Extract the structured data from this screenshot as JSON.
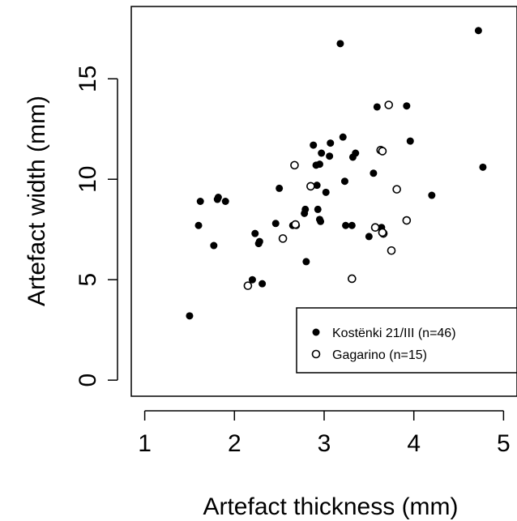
{
  "chart_data": {
    "type": "scatter",
    "title": "",
    "xlabel": "Artefact thickness (mm)",
    "ylabel": "Artefact width (mm)",
    "xlim": [
      0.85,
      5.15
    ],
    "ylim": [
      -0.8,
      18.6
    ],
    "xticks": [
      1,
      2,
      3,
      4,
      5
    ],
    "yticks": [
      0,
      5,
      10,
      15
    ],
    "grid": false,
    "legend_position": "bottom-right",
    "series": [
      {
        "name": "Kostënki 21/III (n=46)",
        "marker": "filled-circle",
        "color": "#000000",
        "points": [
          [
            1.5,
            3.2
          ],
          [
            1.6,
            7.7
          ],
          [
            1.62,
            8.9
          ],
          [
            1.77,
            6.7
          ],
          [
            1.81,
            9.0
          ],
          [
            1.82,
            9.1
          ],
          [
            1.9,
            8.9
          ],
          [
            2.2,
            5.0
          ],
          [
            2.23,
            7.3
          ],
          [
            2.27,
            6.8
          ],
          [
            2.28,
            6.9
          ],
          [
            2.31,
            4.8
          ],
          [
            2.46,
            7.8
          ],
          [
            2.5,
            9.55
          ],
          [
            2.65,
            7.7
          ],
          [
            2.69,
            7.7
          ],
          [
            2.78,
            8.3
          ],
          [
            2.79,
            8.5
          ],
          [
            2.8,
            5.9
          ],
          [
            2.88,
            11.7
          ],
          [
            2.91,
            10.7
          ],
          [
            2.92,
            9.7
          ],
          [
            2.93,
            8.5
          ],
          [
            2.95,
            10.75
          ],
          [
            2.95,
            8.0
          ],
          [
            2.96,
            7.9
          ],
          [
            2.97,
            11.3
          ],
          [
            3.02,
            9.35
          ],
          [
            3.06,
            11.15
          ],
          [
            3.07,
            11.8
          ],
          [
            3.18,
            16.75
          ],
          [
            3.21,
            12.1
          ],
          [
            3.23,
            9.9
          ],
          [
            3.24,
            7.7
          ],
          [
            3.31,
            7.7
          ],
          [
            3.32,
            11.1
          ],
          [
            3.35,
            11.3
          ],
          [
            3.5,
            7.15
          ],
          [
            3.55,
            10.3
          ],
          [
            3.59,
            13.6
          ],
          [
            3.64,
            7.6
          ],
          [
            3.92,
            13.65
          ],
          [
            3.96,
            11.9
          ],
          [
            4.2,
            9.2
          ],
          [
            4.72,
            17.4
          ],
          [
            4.77,
            10.6
          ]
        ]
      },
      {
        "name": "Gagarino (n=15)",
        "marker": "open-circle",
        "color": "#000000",
        "points": [
          [
            2.15,
            4.7
          ],
          [
            2.54,
            7.05
          ],
          [
            2.67,
            10.7
          ],
          [
            2.68,
            7.75
          ],
          [
            2.85,
            9.65
          ],
          [
            3.31,
            5.05
          ],
          [
            3.57,
            7.6
          ],
          [
            3.63,
            11.45
          ],
          [
            3.65,
            11.4
          ],
          [
            3.66,
            7.3
          ],
          [
            3.72,
            13.7
          ],
          [
            3.75,
            6.45
          ],
          [
            3.81,
            9.5
          ],
          [
            3.92,
            7.95
          ],
          [
            3.65,
            7.35
          ]
        ]
      }
    ]
  }
}
